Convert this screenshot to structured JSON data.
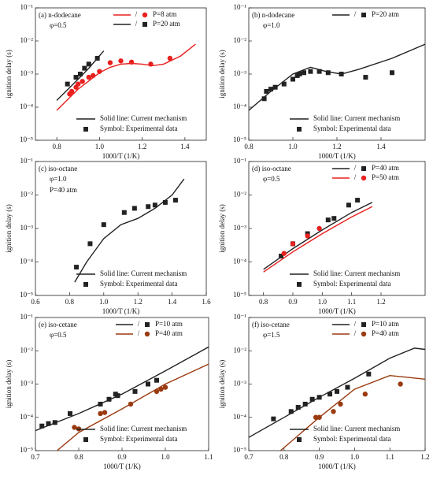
{
  "chart_data": [
    {
      "type": "line",
      "title": "(a) n-dodecane",
      "subtitle": "φ=0.5",
      "xlabel": "1000/T (1/K)",
      "ylabel": "ignition delay (s)",
      "log_y": true,
      "legend_separator": "/",
      "note_line": "Solid line: Current mechanism",
      "note_symbol": "Symbol: Experimental data",
      "xlim": [
        0.7,
        1.5
      ],
      "xticks": [
        0.8,
        {
          "value": 1,
          "label": "1.0"
        },
        1.2,
        1.4
      ],
      "ylim": [
        1e-05,
        0.1
      ],
      "yticks": [
        {
          "value": 1e-05,
          "label": "10⁻⁵"
        },
        {
          "value": 0.0001,
          "label": "10⁻⁴"
        },
        {
          "value": 0.001,
          "label": "10⁻³"
        },
        {
          "value": 0.01,
          "label": "10⁻²"
        },
        {
          "value": 0.1,
          "label": "10⁻¹"
        }
      ],
      "series": [
        {
          "name": "P=8 atm",
          "color": "#e8201e",
          "marker": "circle",
          "line_x": [
            0.8,
            0.9,
            1.0,
            1.05,
            1.1,
            1.15,
            1.2,
            1.25,
            1.3,
            1.38,
            1.45
          ],
          "line_values": [
            8e-05,
            0.00035,
            0.0011,
            0.0016,
            0.002,
            0.0021,
            0.002,
            0.0018,
            0.002,
            0.0035,
            0.008
          ],
          "x": [
            0.86,
            0.87,
            0.89,
            0.9,
            0.92,
            0.95,
            0.97,
            1.0,
            1.05,
            1.1,
            1.15,
            1.24,
            1.33
          ],
          "values": [
            0.00025,
            0.0003,
            0.0004,
            0.0005,
            0.0006,
            0.0008,
            0.0009,
            0.0012,
            0.0022,
            0.0025,
            0.0023,
            0.002,
            0.003
          ]
        },
        {
          "name": "P=20 atm",
          "color": "#222222",
          "marker": "square",
          "line_x": [
            0.8,
            0.9,
            0.95,
            1.02
          ],
          "line_values": [
            0.00016,
            0.0007,
            0.0015,
            0.005
          ],
          "x": [
            0.85,
            0.89,
            0.91,
            0.93,
            0.95,
            0.99
          ],
          "values": [
            0.0005,
            0.0008,
            0.001,
            0.0015,
            0.002,
            0.003
          ]
        }
      ]
    },
    {
      "type": "line",
      "title": "(b) n-dodecane",
      "subtitle": "φ=1.0",
      "xlabel": "1000/T (1/K)",
      "ylabel": "ignition delay (s)",
      "log_y": true,
      "legend_separator": "/",
      "note_line": "Solid line: Current mechanism",
      "note_symbol": "Symbol: Experimental data",
      "xlim": [
        0.8,
        1.6
      ],
      "xticks": [
        0.8,
        {
          "value": 1,
          "label": "1.0"
        },
        1.2,
        1.4
      ],
      "ylim": [
        1e-05,
        0.1
      ],
      "yticks": [
        {
          "value": 1e-05,
          "label": "10⁻⁵"
        },
        {
          "value": 0.0001,
          "label": "10⁻⁴"
        },
        {
          "value": 0.001,
          "label": "10⁻³"
        },
        {
          "value": 0.01,
          "label": "10⁻²"
        },
        {
          "value": 0.1,
          "label": "10⁻¹"
        }
      ],
      "series": [
        {
          "name": "P=20 atm",
          "color": "#222222",
          "marker": "square",
          "line_x": [
            0.8,
            0.9,
            1.0,
            1.08,
            1.15,
            1.22,
            1.3,
            1.45,
            1.6
          ],
          "line_values": [
            8e-05,
            0.0003,
            0.001,
            0.0016,
            0.0012,
            0.001,
            0.0014,
            0.003,
            0.008
          ],
          "x": [
            0.87,
            0.88,
            0.9,
            0.92,
            0.96,
            1.0,
            1.02,
            1.03,
            1.05,
            1.08,
            1.12,
            1.16,
            1.22,
            1.33,
            1.45
          ],
          "values": [
            0.00018,
            0.0003,
            0.00035,
            0.0004,
            0.0005,
            0.0007,
            0.0009,
            0.001,
            0.0011,
            0.0012,
            0.0012,
            0.0011,
            0.001,
            0.0008,
            0.0011
          ]
        }
      ]
    },
    {
      "type": "line",
      "title": "(c) iso-octane",
      "subtitle": "φ=1.0",
      "condition": "P=40 atm",
      "xlabel": "1000/T (1/K)",
      "ylabel": "ignition delay (s)",
      "log_y": true,
      "note_line": "Solid line: Current mechanism",
      "note_symbol": "Symbol: Experimental data",
      "xlim": [
        0.6,
        1.6
      ],
      "xticks": [
        0.6,
        0.8,
        {
          "value": 1,
          "label": "1.0"
        },
        1.2,
        1.4,
        1.6
      ],
      "ylim": [
        1e-05,
        0.1
      ],
      "yticks": [
        {
          "value": 1e-05,
          "label": "10⁻⁵"
        },
        {
          "value": 0.0001,
          "label": "10⁻⁴"
        },
        {
          "value": 0.001,
          "label": "10⁻³"
        },
        {
          "value": 0.01,
          "label": "10⁻²"
        },
        {
          "value": 0.1,
          "label": "10⁻¹"
        }
      ],
      "series": [
        {
          "color": "#222222",
          "marker": "square",
          "line_x": [
            0.83,
            0.9,
            1.0,
            1.1,
            1.2,
            1.3,
            1.4,
            1.47
          ],
          "line_values": [
            2.5e-05,
            0.0001,
            0.0005,
            0.0013,
            0.002,
            0.004,
            0.01,
            0.03
          ],
          "x": [
            0.84,
            0.92,
            1.0,
            1.12,
            1.18,
            1.26,
            1.3,
            1.36,
            1.42
          ],
          "values": [
            7e-05,
            0.00035,
            0.0013,
            0.003,
            0.004,
            0.0045,
            0.005,
            0.006,
            0.007
          ]
        }
      ]
    },
    {
      "type": "line",
      "title": "(d)  iso-octane",
      "subtitle": "φ=0.5",
      "xlabel": "1000/T (1/K)",
      "ylabel": "ignition delay (s)",
      "log_y": true,
      "legend_separator": "/",
      "note_line": "Solid line: Current mechanism",
      "note_symbol": "Symbol: Experimental data",
      "xlim": [
        0.75,
        1.35
      ],
      "xticks": [
        0.8,
        0.9,
        {
          "value": 1,
          "label": "1.0"
        },
        1.1,
        1.2
      ],
      "ylim": [
        1e-05,
        0.1
      ],
      "yticks": [
        {
          "value": 1e-05,
          "label": "10⁻⁵"
        },
        {
          "value": 0.0001,
          "label": "10⁻⁴"
        },
        {
          "value": 0.001,
          "label": "10⁻³"
        },
        {
          "value": 0.01,
          "label": "10⁻²"
        },
        {
          "value": 0.1,
          "label": "10⁻¹"
        }
      ],
      "series": [
        {
          "name": "P=40 atm",
          "color": "#222222",
          "marker": "square",
          "line_x": [
            0.8,
            0.9,
            1.0,
            1.1,
            1.17
          ],
          "line_values": [
            6e-05,
            0.00025,
            0.0009,
            0.003,
            0.006
          ],
          "x": [
            0.86,
            0.9,
            0.95,
            1.02,
            1.04,
            1.09,
            1.12
          ],
          "values": [
            0.00015,
            0.00035,
            0.0007,
            0.0018,
            0.002,
            0.005,
            0.007
          ]
        },
        {
          "name": "P=50 atm",
          "color": "#e8201e",
          "marker": "circle",
          "line_x": [
            0.8,
            0.9,
            1.0,
            1.1,
            1.17
          ],
          "line_values": [
            5e-05,
            0.0002,
            0.0007,
            0.0022,
            0.0045
          ],
          "x": [
            0.87,
            0.9,
            0.95,
            0.99
          ],
          "values": [
            0.00018,
            0.00035,
            0.0006,
            0.001
          ]
        }
      ]
    },
    {
      "type": "line",
      "title": "(e) iso-cetane",
      "subtitle": "φ=0.5",
      "xlabel": "1000/T (1/K)",
      "ylabel": "ignition delay (s)",
      "log_y": true,
      "legend_separator": "/",
      "note_line": "Solid line: Current mechanism",
      "note_symbol": "Symbol: Experimental data",
      "xlim": [
        0.7,
        1.1
      ],
      "xticks": [
        0.7,
        0.8,
        0.9,
        {
          "value": 1,
          "label": "1.0"
        },
        1.1
      ],
      "ylim": [
        1e-05,
        0.1
      ],
      "yticks": [
        {
          "value": 1e-05,
          "label": "10⁻⁵"
        },
        {
          "value": 0.0001,
          "label": "10⁻⁴"
        },
        {
          "value": 0.001,
          "label": "10⁻³"
        },
        {
          "value": 0.01,
          "label": "10⁻²"
        },
        {
          "value": 0.1,
          "label": "10⁻¹"
        }
      ],
      "series": [
        {
          "name": "P=10 atm",
          "color": "#222222",
          "marker": "square",
          "line_x": [
            0.7,
            0.8,
            0.9,
            1.0,
            1.1
          ],
          "line_values": [
            4e-05,
            0.00013,
            0.0005,
            0.0025,
            0.013
          ],
          "x": [
            0.715,
            0.73,
            0.745,
            0.78,
            0.85,
            0.87,
            0.885,
            0.89,
            0.93,
            0.96,
            0.98
          ],
          "values": [
            5.5e-05,
            6.5e-05,
            7e-05,
            0.00013,
            0.00025,
            0.00035,
            0.0005,
            0.00045,
            0.0006,
            0.001,
            0.0013
          ]
        },
        {
          "name": "P=40 atm",
          "color": "#9a3a10",
          "marker": "circle",
          "line_x": [
            0.75,
            0.8,
            0.9,
            1.0,
            1.1
          ],
          "line_values": [
            1e-05,
            3.5e-05,
            0.00018,
            0.001,
            0.004
          ],
          "x": [
            0.79,
            0.8,
            0.85,
            0.86,
            0.92,
            0.98,
            0.99,
            1.0
          ],
          "values": [
            5e-05,
            4.5e-05,
            0.00013,
            0.00014,
            0.00025,
            0.0006,
            0.0007,
            0.0008
          ]
        }
      ]
    },
    {
      "type": "line",
      "title": "(f) iso-cetane",
      "subtitle": "φ=1.5",
      "xlabel": "1000/T (1/K)",
      "ylabel": "ignition delay (s)",
      "log_y": true,
      "legend_separator": "/",
      "note_line": "Solid line: Current mechanism",
      "note_symbol": "Symbol: Experimental data",
      "xlim": [
        0.7,
        1.2
      ],
      "xticks": [
        0.7,
        0.8,
        0.9,
        {
          "value": 1,
          "label": "1.0"
        },
        1.1,
        1.2
      ],
      "ylim": [
        1e-05,
        0.1
      ],
      "yticks": [
        {
          "value": 1e-05,
          "label": "10⁻⁵"
        },
        {
          "value": 0.0001,
          "label": "10⁻⁴"
        },
        {
          "value": 0.001,
          "label": "10⁻³"
        },
        {
          "value": 0.01,
          "label": "10⁻²"
        },
        {
          "value": 0.1,
          "label": "10⁻¹"
        }
      ],
      "series": [
        {
          "name": "P=10 atm",
          "color": "#222222",
          "marker": "square",
          "line_x": [
            0.7,
            0.8,
            0.9,
            1.0,
            1.1,
            1.17,
            1.2
          ],
          "line_values": [
            2.5e-05,
            0.0001,
            0.0004,
            0.0015,
            0.006,
            0.012,
            0.011
          ],
          "x": [
            0.77,
            0.82,
            0.84,
            0.86,
            0.88,
            0.9,
            0.93,
            0.95,
            0.98,
            1.04
          ],
          "values": [
            9e-05,
            0.00015,
            0.0002,
            0.00025,
            0.00035,
            0.0004,
            0.0005,
            0.0006,
            0.0008,
            0.002
          ]
        },
        {
          "name": "P=40 atm",
          "color": "#9a3a10",
          "marker": "circle",
          "line_x": [
            0.79,
            0.9,
            1.0,
            1.1,
            1.15,
            1.2
          ],
          "line_values": [
            1e-05,
            0.0001,
            0.0007,
            0.0018,
            0.0016,
            0.0014
          ],
          "x": [
            0.89,
            0.9,
            0.94,
            0.96,
            1.03,
            1.13
          ],
          "values": [
            0.0001,
            0.0001,
            0.00015,
            0.00025,
            0.0005,
            0.001
          ]
        }
      ]
    }
  ]
}
